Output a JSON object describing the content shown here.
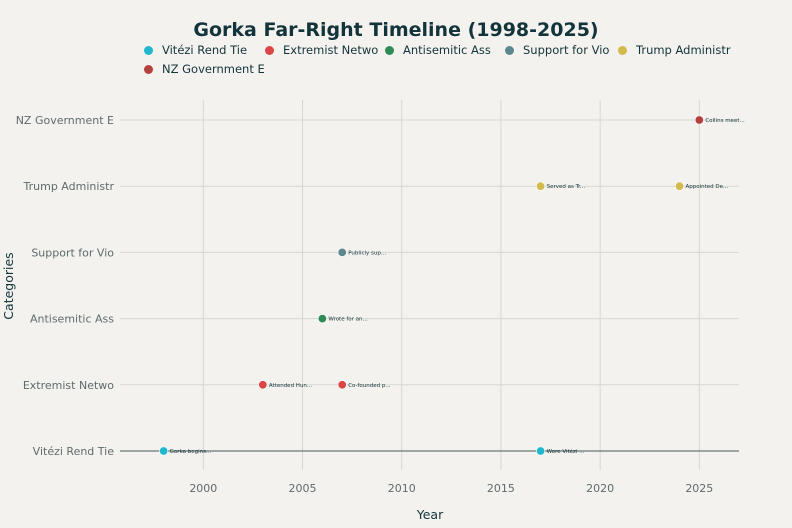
{
  "chart_data": {
    "type": "scatter",
    "title": "Gorka Far-Right Timeline (1998-2025)",
    "xlabel": "Year",
    "ylabel": "Categories",
    "xlim": [
      1995.8,
      2027.0
    ],
    "x_ticks": [
      2000,
      2005,
      2010,
      2015,
      2020,
      2025
    ],
    "grid": true,
    "legend_position": "top",
    "categories": [
      "Vitézi Rend Tie",
      "Extremist Netwo",
      "Antisemitic Ass",
      "Support for Vio",
      "Trump Administr",
      "NZ Government E"
    ],
    "series": [
      {
        "name": "Vitézi Rend Tie",
        "color": "#1fb8cd",
        "points": [
          {
            "x": 1998,
            "label": "Gorka begins..."
          },
          {
            "x": 2017,
            "label": "Wore Vitézi ..."
          }
        ]
      },
      {
        "name": "Extremist Netwo",
        "color": "#db4545",
        "points": [
          {
            "x": 2003,
            "label": "Attended Hun..."
          },
          {
            "x": 2007,
            "label": "Co-founded p..."
          }
        ]
      },
      {
        "name": "Antisemitic Ass",
        "color": "#2e8b57",
        "points": [
          {
            "x": 2006,
            "label": "Wrote for an..."
          }
        ]
      },
      {
        "name": "Support for Vio",
        "color": "#5d878f",
        "points": [
          {
            "x": 2007,
            "label": "Publicly sup..."
          }
        ]
      },
      {
        "name": "Trump Administr",
        "color": "#d2ba4c",
        "points": [
          {
            "x": 2017,
            "label": "Served as Tr..."
          },
          {
            "x": 2024,
            "label": "Appointed De..."
          }
        ]
      },
      {
        "name": "NZ Government E",
        "color": "#b4413c",
        "points": [
          {
            "x": 2025,
            "label": "Collins meet..."
          }
        ]
      }
    ]
  }
}
